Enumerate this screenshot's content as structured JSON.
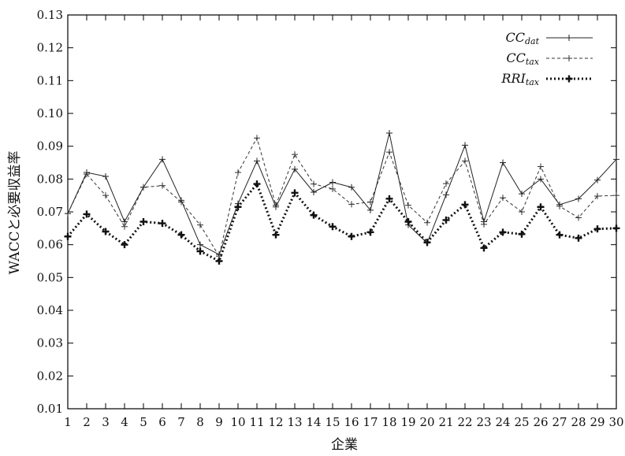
{
  "chart_data": {
    "type": "line",
    "xlabel": "企業",
    "ylabel": "WACCと必要収益率",
    "xlim": [
      1,
      30
    ],
    "ylim": [
      0.01,
      0.13
    ],
    "x_ticks": [
      "1",
      "2",
      "3",
      "4",
      "5",
      "6",
      "7",
      "8",
      "9",
      "10",
      "11",
      "12",
      "13",
      "14",
      "15",
      "16",
      "17",
      "18",
      "19",
      "20",
      "21",
      "22",
      "23",
      "24",
      "25",
      "26",
      "27",
      "28",
      "29",
      "30"
    ],
    "y_ticks": [
      "0.01",
      "0.02",
      "0.03",
      "0.04",
      "0.05",
      "0.06",
      "0.07",
      "0.08",
      "0.09",
      "0.10",
      "0.11",
      "0.12",
      "0.13"
    ],
    "grid": false,
    "legend_position": "top-right",
    "x": [
      1,
      2,
      3,
      4,
      5,
      6,
      7,
      8,
      9,
      10,
      11,
      12,
      13,
      14,
      15,
      16,
      17,
      18,
      19,
      20,
      21,
      22,
      23,
      24,
      25,
      26,
      27,
      28,
      29,
      30
    ],
    "series": [
      {
        "name": "CC",
        "subscript": "dat",
        "style": "solid",
        "marker": "plus",
        "color": "#222222",
        "values": [
          0.0695,
          0.082,
          0.0808,
          0.067,
          0.0775,
          0.086,
          0.0735,
          0.06,
          0.057,
          0.0725,
          0.0855,
          0.0715,
          0.083,
          0.076,
          0.079,
          0.0775,
          0.0705,
          0.094,
          0.066,
          0.0605,
          0.0752,
          0.0903,
          0.067,
          0.085,
          0.0755,
          0.08,
          0.0722,
          0.074,
          0.0797,
          0.086
        ]
      },
      {
        "name": "CC",
        "subscript": "tax",
        "style": "dashed",
        "marker": "plus",
        "color": "#333333",
        "values": [
          0.0695,
          0.0815,
          0.075,
          0.0655,
          0.0775,
          0.078,
          0.073,
          0.066,
          0.0565,
          0.082,
          0.0925,
          0.072,
          0.0875,
          0.0785,
          0.077,
          0.0723,
          0.073,
          0.0882,
          0.072,
          0.0667,
          0.0786,
          0.0855,
          0.0662,
          0.0743,
          0.07,
          0.0838,
          0.0717,
          0.0682,
          0.0748,
          0.075
        ]
      },
      {
        "name": "RRI",
        "subscript": "tax",
        "style": "dotted-bold",
        "marker": "plus-bold",
        "color": "#111111",
        "values": [
          0.0625,
          0.0693,
          0.064,
          0.06,
          0.067,
          0.0665,
          0.063,
          0.058,
          0.055,
          0.0715,
          0.0785,
          0.063,
          0.0758,
          0.069,
          0.0655,
          0.0625,
          0.0638,
          0.074,
          0.067,
          0.0607,
          0.0675,
          0.0722,
          0.059,
          0.0638,
          0.0632,
          0.0715,
          0.063,
          0.062,
          0.0648,
          0.065
        ]
      }
    ]
  }
}
